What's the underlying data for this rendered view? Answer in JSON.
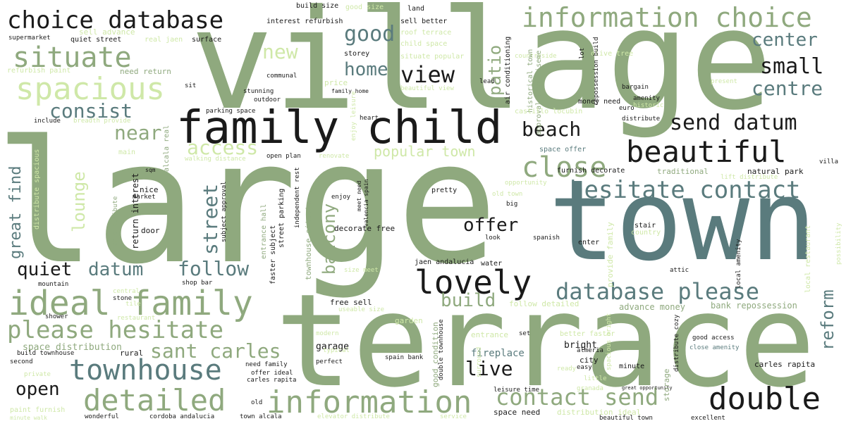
{
  "colors": {
    "sage": "#8fa97e",
    "slate": "#5a7b7d",
    "black": "#1a1a1a",
    "lime": "#cfe8a8",
    "gray": "#666666"
  },
  "words": [
    {
      "text": "village",
      "color": "sage"
    },
    {
      "text": "large",
      "color": "sage"
    },
    {
      "text": "town",
      "color": "slate"
    },
    {
      "text": "terrace",
      "color": "sage"
    },
    {
      "text": "family child",
      "color": "black"
    },
    {
      "text": "information choice",
      "color": "sage"
    },
    {
      "text": "choice database",
      "color": "black"
    },
    {
      "text": "situate",
      "color": "sage"
    },
    {
      "text": "spacious",
      "color": "lime"
    },
    {
      "text": "ideal family",
      "color": "sage"
    },
    {
      "text": "information",
      "color": "sage"
    },
    {
      "text": "detailed",
      "color": "sage"
    },
    {
      "text": "townhouse",
      "color": "slate"
    },
    {
      "text": "please hesitate",
      "color": "sage"
    },
    {
      "text": "beautiful",
      "color": "black"
    },
    {
      "text": "hesitate contact",
      "color": "slate"
    },
    {
      "text": "lovely",
      "color": "black"
    },
    {
      "text": "double",
      "color": "black"
    },
    {
      "text": "database please",
      "color": "slate"
    },
    {
      "text": "close",
      "color": "sage"
    },
    {
      "text": "send datum",
      "color": "black"
    },
    {
      "text": "contact send",
      "color": "sage"
    },
    {
      "text": "sant carles",
      "color": "sage"
    },
    {
      "text": "view",
      "color": "black"
    },
    {
      "text": "home",
      "color": "slate"
    },
    {
      "text": "good",
      "color": "slate"
    },
    {
      "text": "small",
      "color": "black"
    },
    {
      "text": "centre",
      "color": "slate"
    },
    {
      "text": "center",
      "color": "slate"
    },
    {
      "text": "consist",
      "color": "slate"
    },
    {
      "text": "beach",
      "color": "black"
    },
    {
      "text": "follow",
      "color": "slate"
    },
    {
      "text": "datum",
      "color": "slate"
    },
    {
      "text": "quiet",
      "color": "black"
    },
    {
      "text": "offer",
      "color": "black"
    },
    {
      "text": "build",
      "color": "sage"
    },
    {
      "text": "live",
      "color": "black"
    },
    {
      "text": "open",
      "color": "black"
    },
    {
      "text": "near",
      "color": "sage"
    },
    {
      "text": "access",
      "color": "lime"
    },
    {
      "text": "new",
      "color": "lime"
    },
    {
      "text": "popular town",
      "color": "lime"
    },
    {
      "text": "reform",
      "color": "slate"
    },
    {
      "text": "patio",
      "color": "sage"
    },
    {
      "text": "lounge",
      "color": "lime"
    },
    {
      "text": "street",
      "color": "slate"
    },
    {
      "text": "balcony",
      "color": "sage"
    },
    {
      "text": "great find",
      "color": "slate"
    },
    {
      "text": "space distribution",
      "color": "sage"
    },
    {
      "text": "fireplace",
      "color": "slate"
    },
    {
      "text": "garage",
      "color": "black"
    },
    {
      "text": "bright",
      "color": "black"
    },
    {
      "text": "advance money",
      "color": "sage"
    },
    {
      "text": "bank repossession",
      "color": "sage"
    },
    {
      "text": "build size",
      "color": "black"
    },
    {
      "text": "good size",
      "color": "lime"
    },
    {
      "text": "land",
      "color": "black"
    },
    {
      "text": "interest refurbish",
      "color": "black"
    },
    {
      "text": "sell better",
      "color": "black"
    },
    {
      "text": "roof terrace",
      "color": "lime"
    },
    {
      "text": "child space",
      "color": "lime"
    },
    {
      "text": "storey",
      "color": "black"
    },
    {
      "text": "situate popular",
      "color": "lime"
    },
    {
      "text": "supermarket",
      "color": "black"
    },
    {
      "text": "sell advance",
      "color": "lime"
    },
    {
      "text": "quiet street",
      "color": "black"
    },
    {
      "text": "real jaen",
      "color": "lime"
    },
    {
      "text": "surface",
      "color": "black"
    },
    {
      "text": "refurbish paint",
      "color": "lime"
    },
    {
      "text": "need return",
      "color": "sage"
    },
    {
      "text": "communal",
      "color": "black"
    },
    {
      "text": "stunning",
      "color": "black"
    },
    {
      "text": "outdoor",
      "color": "black"
    },
    {
      "text": "price",
      "color": "lime"
    },
    {
      "text": "family home",
      "color": "black"
    },
    {
      "text": "beautiful view",
      "color": "lime"
    },
    {
      "text": "air conditioning",
      "color": "black"
    },
    {
      "text": "countryside",
      "color": "lime"
    },
    {
      "text": "olive tree",
      "color": "lime"
    },
    {
      "text": "historical town",
      "color": "sage"
    },
    {
      "text": "repossession build",
      "color": "black"
    },
    {
      "text": "approval advertiseme",
      "color": "sage"
    },
    {
      "text": "castillo locubin",
      "color": "lime"
    },
    {
      "text": "money need",
      "color": "black"
    },
    {
      "text": "amenity",
      "color": "black"
    },
    {
      "text": "historic",
      "color": "lime"
    },
    {
      "text": "euro",
      "color": "black"
    },
    {
      "text": "bargain",
      "color": "black"
    },
    {
      "text": "present",
      "color": "lime"
    },
    {
      "text": "lead",
      "color": "black"
    },
    {
      "text": "parking space",
      "color": "black"
    },
    {
      "text": "heart",
      "color": "black"
    },
    {
      "text": "include",
      "color": "black"
    },
    {
      "text": "breadth provide",
      "color": "lime"
    },
    {
      "text": "sit",
      "color": "black"
    },
    {
      "text": "main",
      "color": "lime"
    },
    {
      "text": "open plan",
      "color": "black"
    },
    {
      "text": "renovate",
      "color": "lime"
    },
    {
      "text": "walking distance",
      "color": "lime"
    },
    {
      "text": "space offer",
      "color": "slate"
    },
    {
      "text": "furnish decorate",
      "color": "black"
    },
    {
      "text": "traditional",
      "color": "sage"
    },
    {
      "text": "natural park",
      "color": "black"
    },
    {
      "text": "lift distribute",
      "color": "lime"
    },
    {
      "text": "villa",
      "color": "black"
    },
    {
      "text": "distribute",
      "color": "black"
    },
    {
      "text": "nice",
      "color": "black"
    },
    {
      "text": "market",
      "color": "black"
    },
    {
      "text": "pretty",
      "color": "black"
    },
    {
      "text": "old town",
      "color": "lime"
    },
    {
      "text": "opportunity",
      "color": "lime"
    },
    {
      "text": "big",
      "color": "black"
    },
    {
      "text": "enjoy",
      "color": "black"
    },
    {
      "text": "meet need",
      "color": "black"
    },
    {
      "text": "valencia spain",
      "color": "black"
    },
    {
      "text": "subject approval",
      "color": "black"
    },
    {
      "text": "return interest",
      "color": "black"
    },
    {
      "text": "high distribute",
      "color": "sage"
    },
    {
      "text": "door",
      "color": "black"
    },
    {
      "text": "decorate free",
      "color": "black"
    },
    {
      "text": "look",
      "color": "black"
    },
    {
      "text": "spanish",
      "color": "black"
    },
    {
      "text": "stair",
      "color": "black"
    },
    {
      "text": "country",
      "color": "lime"
    },
    {
      "text": "enter",
      "color": "black"
    },
    {
      "text": "entrance hall",
      "color": "sage"
    },
    {
      "text": "jaen andalucia",
      "color": "black"
    },
    {
      "text": "water",
      "color": "black"
    },
    {
      "text": "size meet",
      "color": "lime"
    },
    {
      "text": "attic",
      "color": "black"
    },
    {
      "text": "local amenity",
      "color": "black"
    },
    {
      "text": "mountain",
      "color": "black"
    },
    {
      "text": "shop bar",
      "color": "black"
    },
    {
      "text": "central",
      "color": "lime"
    },
    {
      "text": "stone",
      "color": "black"
    },
    {
      "text": "tile",
      "color": "lime"
    },
    {
      "text": "free sell",
      "color": "black"
    },
    {
      "text": "useable size",
      "color": "lime"
    },
    {
      "text": "garden",
      "color": "lime"
    },
    {
      "text": "follow detailed",
      "color": "lime"
    },
    {
      "text": "shower",
      "color": "black"
    },
    {
      "text": "restaurant",
      "color": "lime"
    },
    {
      "text": "modern",
      "color": "lime"
    },
    {
      "text": "typical",
      "color": "lime"
    },
    {
      "text": "rural",
      "color": "black"
    },
    {
      "text": "build townhouse",
      "color": "black"
    },
    {
      "text": "second",
      "color": "black"
    },
    {
      "text": "private",
      "color": "lime"
    },
    {
      "text": "need family",
      "color": "black"
    },
    {
      "text": "carles rapita",
      "color": "black"
    },
    {
      "text": "paint furnish",
      "color": "lime"
    },
    {
      "text": "minute walk",
      "color": "lime"
    },
    {
      "text": "wonderful",
      "color": "black"
    },
    {
      "text": "cordoba andalucia",
      "color": "black"
    },
    {
      "text": "town alcala",
      "color": "black"
    },
    {
      "text": "offer ideal",
      "color": "black"
    },
    {
      "text": "old",
      "color": "black"
    },
    {
      "text": "perfect",
      "color": "black"
    },
    {
      "text": "spain bank",
      "color": "black"
    },
    {
      "text": "elevator distribute",
      "color": "lime"
    },
    {
      "text": "service",
      "color": "lime"
    },
    {
      "text": "leisure time",
      "color": "black"
    },
    {
      "text": "space need",
      "color": "black"
    },
    {
      "text": "distribution ideal",
      "color": "lime"
    },
    {
      "text": "beautiful town",
      "color": "black"
    },
    {
      "text": "excellent",
      "color": "black"
    },
    {
      "text": "city",
      "color": "black"
    },
    {
      "text": "almeria",
      "color": "black"
    },
    {
      "text": "easy",
      "color": "black"
    },
    {
      "text": "minute",
      "color": "black"
    },
    {
      "text": "carles rapita",
      "color": "black"
    },
    {
      "text": "little",
      "color": "lime"
    },
    {
      "text": "granada",
      "color": "lime"
    },
    {
      "text": "great opportunity",
      "color": "black"
    },
    {
      "text": "good access",
      "color": "black"
    },
    {
      "text": "close amenity",
      "color": "slate"
    },
    {
      "text": "entrance",
      "color": "lime"
    },
    {
      "text": "set",
      "color": "black"
    },
    {
      "text": "better faster",
      "color": "lime"
    },
    {
      "text": "ready",
      "color": "lime"
    },
    {
      "text": "faster subject",
      "color": "black"
    },
    {
      "text": "street parking",
      "color": "black"
    },
    {
      "text": "townhouse situate",
      "color": "sage"
    },
    {
      "text": "independent rest",
      "color": "black"
    },
    {
      "text": "good condition",
      "color": "sage"
    },
    {
      "text": "double townhouse",
      "color": "black"
    },
    {
      "text": "surround",
      "color": "lime"
    },
    {
      "text": "storage",
      "color": "sage"
    },
    {
      "text": "distribute cozy",
      "color": "black"
    },
    {
      "text": "provide family",
      "color": "lime"
    },
    {
      "text": "spacious bright",
      "color": "lime"
    },
    {
      "text": "local restaurant",
      "color": "lime"
    },
    {
      "text": "possibility",
      "color": "lime"
    },
    {
      "text": "alcala real",
      "color": "sage"
    },
    {
      "text": "distribute spacious",
      "color": "lime"
    },
    {
      "text": "enjoy leisure",
      "color": "lime"
    },
    {
      "text": "sqm",
      "color": "black"
    },
    {
      "text": "lot",
      "color": "black"
    }
  ]
}
